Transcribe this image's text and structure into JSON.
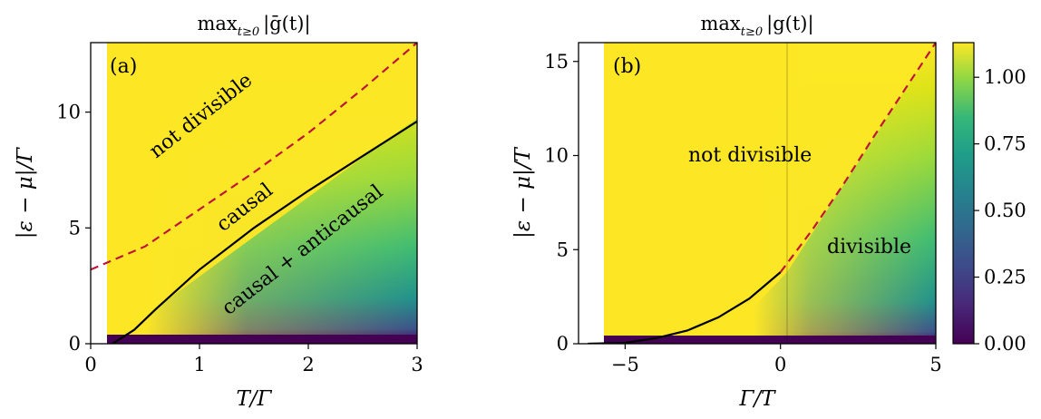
{
  "chart_data": [
    {
      "type": "heatmap",
      "panel_label": "(a)",
      "title": "max_{t≥0} |ḡ(t)|",
      "title_main": "max",
      "title_sub": "t≥0",
      "title_body": "|ḡ(t)|",
      "xlabel": "T/Γ",
      "ylabel": "|ε − μ|/Γ",
      "xlim": [
        0,
        3
      ],
      "ylim": [
        0,
        13
      ],
      "xticks": [
        "0",
        "1",
        "2",
        "3"
      ],
      "yticks": [
        "0",
        "5",
        "10"
      ],
      "region_labels": [
        "not divisible",
        "causal",
        "causal + anticausal"
      ],
      "colormap": "viridis",
      "blank_region_x_max": 0.15,
      "curves": [
        {
          "style": "dashed",
          "color": "#c0143c",
          "x": [
            0,
            0.5,
            1.0,
            1.5,
            2.0,
            2.5,
            3.0
          ],
          "y": [
            3.2,
            4.2,
            5.8,
            7.4,
            9.1,
            11.0,
            13.0
          ]
        },
        {
          "style": "solid",
          "color": "#000000",
          "x": [
            0.2,
            0.4,
            0.6,
            1.0,
            1.5,
            2.0,
            2.5,
            3.0
          ],
          "y": [
            0,
            0.6,
            1.5,
            3.2,
            5.0,
            6.6,
            8.1,
            9.6
          ]
        }
      ]
    },
    {
      "type": "heatmap",
      "panel_label": "(b)",
      "title": "max_{t≥0} |g(t)|",
      "title_main": "max",
      "title_sub": "t≥0",
      "title_body": "|g(t)|",
      "xlabel": "Γ/T",
      "ylabel": "|ε − μ|/T",
      "xlim": [
        -6.5,
        5
      ],
      "ylim": [
        0,
        16
      ],
      "xticks": [
        "−5",
        "0",
        "5"
      ],
      "yticks": [
        "0",
        "5",
        "10",
        "15"
      ],
      "region_labels": [
        "not divisible",
        "divisible"
      ],
      "colormap": "viridis",
      "colorbar": {
        "ticks": [
          "0.00",
          "0.25",
          "0.50",
          "0.75",
          "1.00"
        ],
        "range": [
          0,
          1.13
        ]
      },
      "curves": [
        {
          "style": "solid",
          "color": "#000000",
          "x": [
            -6.2,
            -5,
            -4,
            -3,
            -2,
            -1,
            0
          ],
          "y": [
            0,
            0.05,
            0.3,
            0.7,
            1.4,
            2.4,
            3.8
          ]
        },
        {
          "style": "dashed",
          "color": "#c0143c",
          "x": [
            0,
            1,
            2,
            3,
            4,
            5
          ],
          "y": [
            3.8,
            6.0,
            8.4,
            11.0,
            13.5,
            16.0
          ]
        }
      ]
    }
  ]
}
